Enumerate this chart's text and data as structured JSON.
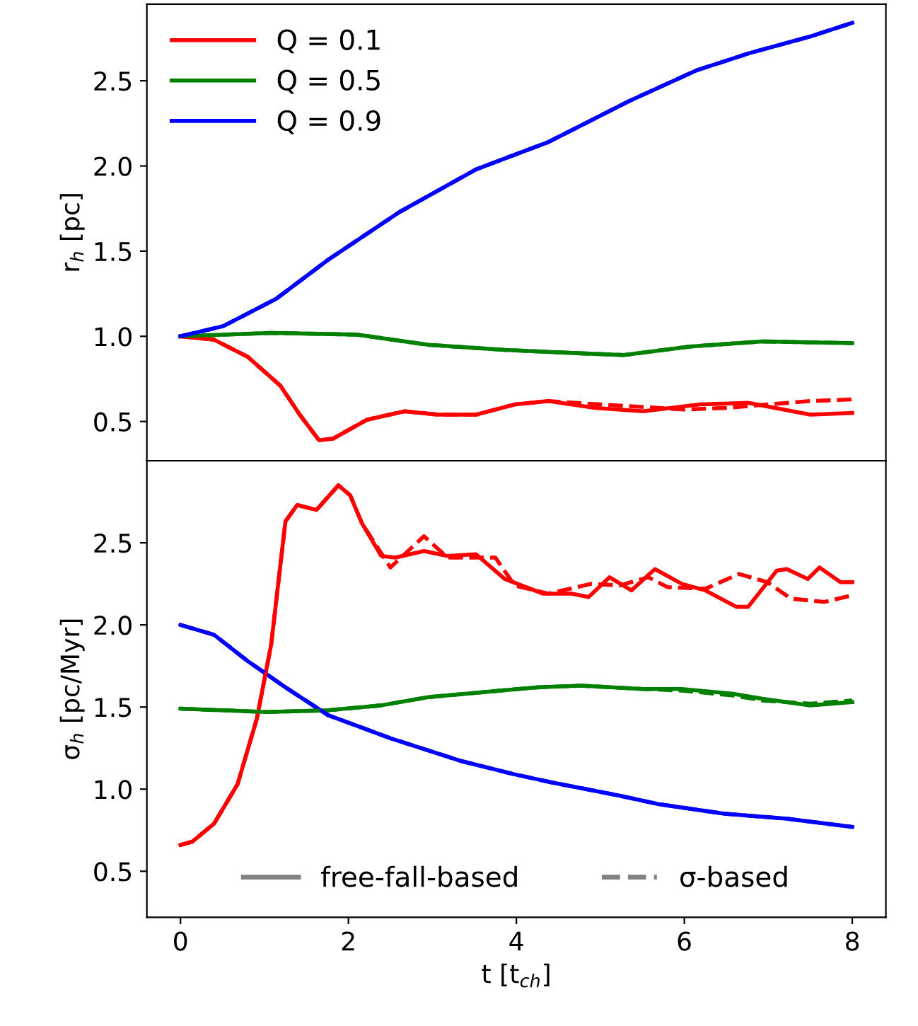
{
  "chart_data": [
    {
      "type": "line",
      "ylabel": "r$_{h}$ [pc]",
      "xlim": [
        -0.4,
        8.4
      ],
      "xticks": [
        0,
        2,
        4,
        6,
        8
      ],
      "ylim": [
        0.27,
        2.95
      ],
      "yticks": [
        {
          "value": 0.5,
          "label": "0.5"
        },
        {
          "value": 1.0,
          "label": "1.0"
        },
        {
          "value": 1.5,
          "label": "1.5"
        },
        {
          "value": 2.0,
          "label": "2.0"
        },
        {
          "value": 2.5,
          "label": "2.5"
        }
      ],
      "tick_labels": "y",
      "legend": "top left",
      "grid": false,
      "series": [
        {
          "name": "Q = 0.1",
          "color": "#ff0000",
          "line_style": "solid",
          "x": [
            0,
            0.4,
            0.8,
            1.19,
            1.42,
            1.65,
            1.82,
            2.22,
            2.67,
            3.07,
            3.52,
            3.98,
            4.38,
            4.94,
            5.51,
            6.19,
            6.76,
            7.5,
            8
          ],
          "values": [
            1.0,
            0.98,
            0.88,
            0.71,
            0.54,
            0.39,
            0.4,
            0.51,
            0.56,
            0.54,
            0.54,
            0.6,
            0.62,
            0.58,
            0.56,
            0.6,
            0.61,
            0.54,
            0.55
          ]
        },
        {
          "name": "Q = 0.5",
          "color": "#008000",
          "line_style": "solid",
          "x": [
            0,
            1.08,
            2.1,
            2.95,
            3.86,
            4.77,
            5.28,
            6.07,
            6.93,
            8
          ],
          "values": [
            1.0,
            1.02,
            1.01,
            0.95,
            0.92,
            0.9,
            0.89,
            0.94,
            0.97,
            0.96
          ]
        },
        {
          "name": "Q = 0.9",
          "color": "#0000ff",
          "line_style": "solid",
          "x": [
            0,
            0.51,
            1.14,
            1.76,
            2.61,
            3.52,
            4.38,
            5.34,
            6.14,
            6.76,
            7.5,
            8
          ],
          "values": [
            1.0,
            1.06,
            1.22,
            1.45,
            1.73,
            1.98,
            2.14,
            2.38,
            2.56,
            2.66,
            2.76,
            2.84
          ]
        },
        {
          "color": "#ff0000",
          "line_style": "dashed",
          "x": [
            0,
            0.4,
            0.8,
            1.19,
            1.42,
            1.65,
            1.82,
            2.22,
            2.67,
            3.07,
            3.52,
            3.98,
            4.38,
            5.0,
            6.0,
            6.5,
            7.5,
            8
          ],
          "values": [
            1.0,
            0.98,
            0.88,
            0.71,
            0.54,
            0.39,
            0.4,
            0.51,
            0.56,
            0.54,
            0.54,
            0.6,
            0.62,
            0.6,
            0.57,
            0.58,
            0.62,
            0.63
          ]
        },
        {
          "color": "#008000",
          "line_style": "dashed",
          "x": [
            0,
            1.08,
            2.1,
            2.95,
            3.86,
            4.77,
            5.28,
            6.07,
            6.93,
            8
          ],
          "values": [
            1.0,
            1.02,
            1.01,
            0.95,
            0.92,
            0.9,
            0.89,
            0.94,
            0.97,
            0.96
          ]
        },
        {
          "color": "#0000ff",
          "line_style": "dashed",
          "x": [
            0,
            0.51,
            1.14,
            1.76,
            2.61,
            3.52,
            4.38,
            5.34,
            6.14,
            6.76,
            7.5,
            8
          ],
          "values": [
            1.0,
            1.06,
            1.22,
            1.45,
            1.73,
            1.98,
            2.14,
            2.38,
            2.56,
            2.66,
            2.76,
            2.84
          ]
        }
      ]
    },
    {
      "type": "line",
      "xlabel": "t [t$_{ch}$]",
      "ylabel": "σ$_{h}$ [pc/Myr]",
      "xlim": [
        -0.4,
        8.4
      ],
      "xticks": [
        0,
        2,
        4,
        6,
        8
      ],
      "ylim": [
        0.22,
        3.0
      ],
      "yticks": [
        {
          "value": 0.5,
          "label": "0.5"
        },
        {
          "value": 1.0,
          "label": "1.0"
        },
        {
          "value": 1.5,
          "label": "1.5"
        },
        {
          "value": 2.0,
          "label": "2.0"
        },
        {
          "value": 2.5,
          "label": "2.5"
        }
      ],
      "legend": "bottom",
      "grid": false,
      "annotations": [
        "free-fall-based",
        "σ-based"
      ],
      "series": [
        {
          "color": "#ff0000",
          "line_style": "solid",
          "x": [
            0,
            0.14,
            0.4,
            0.68,
            0.91,
            1.08,
            1.25,
            1.39,
            1.62,
            1.88,
            2.02,
            2.16,
            2.39,
            2.56,
            2.9,
            3.18,
            3.52,
            3.86,
            4.32,
            4.66,
            4.86,
            5.11,
            5.37,
            5.65,
            5.97,
            6.25,
            6.62,
            6.76,
            7.1,
            7.22,
            7.47,
            7.61,
            7.86,
            8
          ],
          "values": [
            0.66,
            0.68,
            0.79,
            1.03,
            1.43,
            1.88,
            2.63,
            2.73,
            2.7,
            2.85,
            2.79,
            2.62,
            2.42,
            2.41,
            2.45,
            2.42,
            2.43,
            2.28,
            2.19,
            2.19,
            2.17,
            2.29,
            2.21,
            2.34,
            2.25,
            2.21,
            2.11,
            2.11,
            2.33,
            2.34,
            2.28,
            2.35,
            2.26,
            2.26
          ]
        },
        {
          "color": "#008000",
          "line_style": "solid",
          "x": [
            0,
            1.02,
            1.76,
            2.39,
            2.95,
            3.81,
            4.26,
            4.77,
            5.51,
            5.97,
            6.59,
            6.93,
            7.5,
            8
          ],
          "values": [
            1.49,
            1.47,
            1.48,
            1.51,
            1.56,
            1.6,
            1.62,
            1.63,
            1.61,
            1.61,
            1.58,
            1.55,
            1.51,
            1.53
          ]
        },
        {
          "color": "#0000ff",
          "line_style": "solid",
          "x": [
            0,
            0.4,
            0.8,
            1.25,
            1.76,
            2.5,
            3.35,
            3.98,
            4.43,
            5.23,
            5.68,
            6.48,
            7.22,
            8
          ],
          "values": [
            2.0,
            1.94,
            1.78,
            1.62,
            1.45,
            1.31,
            1.17,
            1.09,
            1.04,
            0.96,
            0.91,
            0.85,
            0.82,
            0.77
          ]
        },
        {
          "color": "#ff0000",
          "line_style": "dashed",
          "x": [
            0,
            0.14,
            0.4,
            0.68,
            0.91,
            1.08,
            1.25,
            1.39,
            1.62,
            1.88,
            2.02,
            2.16,
            2.5,
            2.9,
            3.18,
            3.75,
            3.98,
            4.38,
            4.89,
            5.23,
            5.57,
            5.8,
            6.25,
            6.65,
            6.99,
            7.27,
            7.67,
            8
          ],
          "values": [
            0.66,
            0.68,
            0.79,
            1.03,
            1.43,
            1.88,
            2.63,
            2.73,
            2.7,
            2.85,
            2.79,
            2.62,
            2.35,
            2.54,
            2.41,
            2.41,
            2.24,
            2.19,
            2.25,
            2.24,
            2.29,
            2.23,
            2.22,
            2.31,
            2.26,
            2.16,
            2.14,
            2.18
          ]
        },
        {
          "color": "#008000",
          "line_style": "dashed",
          "x": [
            0,
            1.02,
            1.76,
            2.39,
            2.95,
            3.81,
            4.26,
            4.77,
            5.51,
            5.97,
            6.59,
            6.93,
            7.5,
            8
          ],
          "values": [
            1.49,
            1.47,
            1.48,
            1.51,
            1.56,
            1.6,
            1.62,
            1.63,
            1.61,
            1.6,
            1.57,
            1.54,
            1.52,
            1.54
          ]
        },
        {
          "color": "#0000ff",
          "line_style": "dashed",
          "x": [
            0,
            0.4,
            0.8,
            1.25,
            1.76,
            2.5,
            3.35,
            3.98,
            4.43,
            5.23,
            5.68,
            6.48,
            7.22,
            8
          ],
          "values": [
            2.0,
            1.94,
            1.78,
            1.62,
            1.45,
            1.31,
            1.17,
            1.09,
            1.04,
            0.96,
            0.91,
            0.85,
            0.82,
            0.77
          ]
        }
      ]
    }
  ]
}
